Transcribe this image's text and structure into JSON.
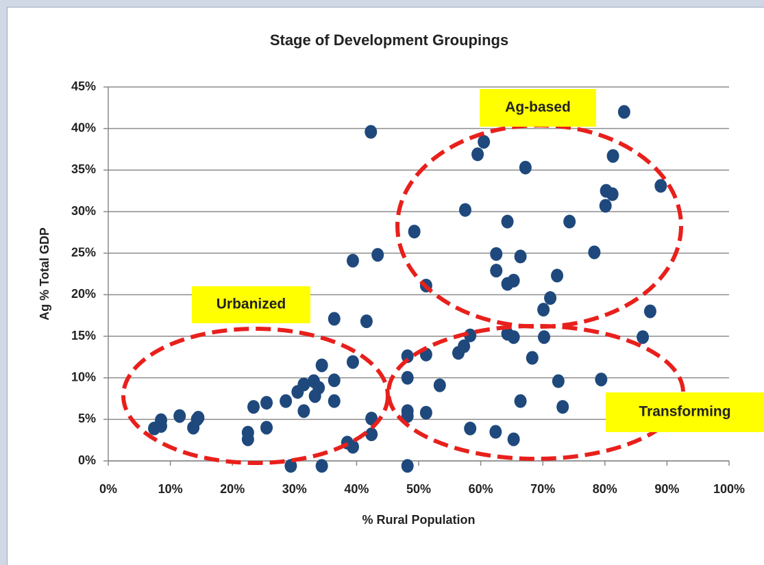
{
  "chart_data": {
    "type": "scatter",
    "title": "Stage of Development Groupings",
    "x_label": "% Rural Population",
    "y_label": "Ag % Total GDP",
    "color": "#1f497d",
    "grid": true,
    "xlim": [
      0,
      100
    ],
    "ylim": [
      0,
      45
    ],
    "xticks": [
      {
        "value": 0,
        "label": "0%"
      },
      {
        "value": 10,
        "label": "10%"
      },
      {
        "value": 20,
        "label": "20%"
      },
      {
        "value": 30,
        "label": "30%"
      },
      {
        "value": 40,
        "label": "40%"
      },
      {
        "value": 50,
        "label": "50%"
      },
      {
        "value": 60,
        "label": "60%"
      },
      {
        "value": 70,
        "label": "70%"
      },
      {
        "value": 80,
        "label": "80%"
      },
      {
        "value": 90,
        "label": "90%"
      },
      {
        "value": 100,
        "label": "100%"
      }
    ],
    "yticks": [
      {
        "value": 0,
        "label": "0%"
      },
      {
        "value": 5,
        "label": "5%"
      },
      {
        "value": 10,
        "label": "10%"
      },
      {
        "value": 15,
        "label": "15%"
      },
      {
        "value": 20,
        "label": "20%"
      },
      {
        "value": 25,
        "label": "25%"
      },
      {
        "value": 30,
        "label": "30%"
      },
      {
        "value": 35,
        "label": "35%"
      },
      {
        "value": 40,
        "label": "40%"
      },
      {
        "value": 45,
        "label": "45%"
      }
    ],
    "annotations": [
      "Ag-based",
      "Urbanized",
      "Transforming"
    ],
    "x": [
      7.4,
      8.5,
      8.5,
      11.5,
      13.7,
      14.3,
      14.5,
      22.5,
      22.5,
      23.4,
      25.5,
      25.5,
      28.6,
      29.4,
      30.5,
      31.5,
      31.5,
      33.1,
      33.3,
      33.9,
      34.4,
      34.4,
      36.4,
      36.4,
      36.4,
      38.5,
      39.4,
      39.4,
      39.4,
      41.6,
      42.3,
      42.4,
      42.4,
      43.4,
      48.2,
      48.2,
      48.2,
      48.2,
      48.2,
      49.3,
      51.2,
      51.2,
      51.2,
      53.4,
      56.4,
      57.3,
      57.5,
      58.3,
      58.3,
      59.5,
      60.5,
      62.4,
      62.5,
      62.5,
      64.3,
      64.3,
      64.3,
      65.3,
      65.3,
      65.3,
      66.4,
      66.4,
      67.2,
      68.3,
      70.1,
      70.2,
      71.2,
      72.3,
      72.5,
      73.2,
      74.3,
      78.3,
      79.4,
      80.1,
      80.2,
      81.2,
      81.3,
      83.1,
      86.1,
      87.3,
      89.0
    ],
    "values": [
      3.9,
      4.9,
      4.2,
      5.4,
      4.0,
      5.0,
      5.2,
      3.4,
      2.6,
      6.5,
      7.0,
      4.0,
      7.2,
      -0.6,
      8.3,
      9.2,
      6.0,
      9.6,
      7.8,
      8.8,
      11.5,
      -0.6,
      17.1,
      9.7,
      7.2,
      2.2,
      1.7,
      11.9,
      24.1,
      16.8,
      39.6,
      5.1,
      3.2,
      24.8,
      12.6,
      10.0,
      6.0,
      5.4,
      -0.6,
      27.6,
      21.1,
      12.8,
      5.8,
      9.1,
      13.0,
      13.8,
      30.2,
      15.1,
      3.9,
      36.9,
      38.4,
      3.5,
      24.9,
      22.9,
      28.8,
      21.3,
      15.3,
      21.7,
      14.9,
      2.6,
      24.6,
      7.2,
      35.3,
      12.4,
      18.2,
      14.9,
      19.6,
      22.3,
      9.6,
      6.5,
      28.8,
      25.1,
      9.8,
      30.7,
      32.5,
      32.1,
      36.7,
      42.0,
      14.9,
      18.0,
      33.1
    ]
  }
}
